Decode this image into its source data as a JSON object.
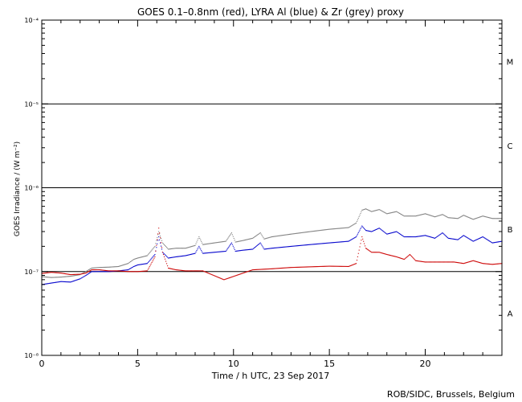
{
  "chart_data": {
    "type": "scatter",
    "title": "GOES 0.1–0.8nm (red), LYRA Al (blue) & Zr (grey) proxy",
    "xlabel": "Time / h UTC, 23 Sep 2017",
    "ylabel": "GOES Irradiance / (W m⁻²)",
    "x_range": [
      0,
      24
    ],
    "x_ticks": [
      0,
      5,
      10,
      15,
      20
    ],
    "y_scale": "log",
    "y_range": [
      1e-08,
      0.0001
    ],
    "y_ticks": [
      {
        "value": 1e-08,
        "label": "10⁻⁸"
      },
      {
        "value": 1e-07,
        "label": "10⁻⁷"
      },
      {
        "value": 1e-06,
        "label": "10⁻⁶"
      },
      {
        "value": 1e-05,
        "label": "10⁻⁵"
      },
      {
        "value": 0.0001,
        "label": "10⁻⁴"
      }
    ],
    "flare_class_lines": [
      1e-07,
      1e-06,
      1e-05
    ],
    "flare_class_labels": [
      {
        "label": "A",
        "value": 3.2e-08
      },
      {
        "label": "B",
        "value": 3.2e-07
      },
      {
        "label": "C",
        "value": 3.2e-06
      },
      {
        "label": "M",
        "value": 3.2e-05
      }
    ],
    "series": [
      {
        "name": "LYRA Zr proxy",
        "color": "#808080",
        "x": [
          0,
          0.5,
          1,
          1.5,
          2,
          2.3,
          2.6,
          3,
          3.5,
          4,
          4.5,
          4.8,
          5,
          5.5,
          5.9,
          6.1,
          6.3,
          6.6,
          7,
          7.5,
          8,
          8.2,
          8.4,
          9,
          9.6,
          9.9,
          10.1,
          10.5,
          11,
          11.4,
          11.6,
          12,
          13,
          14,
          15,
          16,
          16.4,
          16.7,
          16.9,
          17.2,
          17.6,
          18,
          18.5,
          18.9,
          19.5,
          20,
          20.5,
          20.9,
          21.2,
          21.7,
          22,
          22.5,
          23,
          23.5,
          24
        ],
        "y": [
          8.7e-08,
          8.5e-08,
          8.6e-08,
          8.8e-08,
          9.2e-08,
          1e-07,
          1.1e-07,
          1.12e-07,
          1.13e-07,
          1.15e-07,
          1.25e-07,
          1.4e-07,
          1.45e-07,
          1.55e-07,
          2e-07,
          3e-07,
          2.2e-07,
          1.85e-07,
          1.9e-07,
          1.9e-07,
          2.05e-07,
          2.6e-07,
          2.1e-07,
          2.2e-07,
          2.3e-07,
          2.9e-07,
          2.25e-07,
          2.35e-07,
          2.5e-07,
          2.9e-07,
          2.45e-07,
          2.6e-07,
          2.8e-07,
          3e-07,
          3.2e-07,
          3.35e-07,
          3.8e-07,
          5.4e-07,
          5.6e-07,
          5.2e-07,
          5.5e-07,
          4.9e-07,
          5.2e-07,
          4.6e-07,
          4.6e-07,
          4.9e-07,
          4.5e-07,
          4.8e-07,
          4.4e-07,
          4.3e-07,
          4.7e-07,
          4.2e-07,
          4.6e-07,
          4.3e-07,
          4.3e-07
        ]
      },
      {
        "name": "LYRA Al proxy",
        "color": "#0000cc",
        "x": [
          0,
          0.5,
          1,
          1.5,
          2,
          2.3,
          2.6,
          3,
          3.5,
          4,
          4.5,
          4.8,
          5,
          5.5,
          5.9,
          6.1,
          6.3,
          6.6,
          7,
          7.5,
          8,
          8.2,
          8.4,
          9,
          9.6,
          9.9,
          10.1,
          10.5,
          11,
          11.4,
          11.6,
          12,
          13,
          14,
          15,
          16,
          16.4,
          16.7,
          16.9,
          17.2,
          17.6,
          18,
          18.5,
          18.9,
          19.5,
          20,
          20.5,
          20.9,
          21.2,
          21.7,
          22,
          22.5,
          23,
          23.5,
          24
        ],
        "y": [
          7e-08,
          7.3e-08,
          7.6e-08,
          7.5e-08,
          8.2e-08,
          9e-08,
          1e-07,
          1e-07,
          1e-07,
          1.02e-07,
          1.05e-07,
          1.15e-07,
          1.2e-07,
          1.25e-07,
          1.6e-07,
          2.6e-07,
          1.7e-07,
          1.45e-07,
          1.5e-07,
          1.55e-07,
          1.65e-07,
          2e-07,
          1.65e-07,
          1.7e-07,
          1.75e-07,
          2.2e-07,
          1.75e-07,
          1.8e-07,
          1.85e-07,
          2.2e-07,
          1.85e-07,
          1.9e-07,
          2e-07,
          2.1e-07,
          2.2e-07,
          2.3e-07,
          2.6e-07,
          3.5e-07,
          3.1e-07,
          3e-07,
          3.3e-07,
          2.8e-07,
          3e-07,
          2.6e-07,
          2.6e-07,
          2.7e-07,
          2.5e-07,
          2.9e-07,
          2.5e-07,
          2.4e-07,
          2.7e-07,
          2.3e-07,
          2.6e-07,
          2.2e-07,
          2.3e-07
        ]
      },
      {
        "name": "GOES 0.1–0.8nm",
        "color": "#cc0000",
        "x": [
          0,
          0.5,
          1,
          1.5,
          2,
          2.3,
          2.6,
          3,
          3.5,
          4,
          4.5,
          5,
          5.5,
          5.9,
          6.1,
          6.3,
          6.6,
          7,
          7.5,
          8,
          8.4,
          9.5,
          9.9,
          10.5,
          11,
          12,
          13,
          14,
          15,
          16,
          16.4,
          16.7,
          16.9,
          17.2,
          17.6,
          18,
          18.5,
          18.9,
          19.2,
          19.5,
          20,
          20.5,
          21,
          21.5,
          22,
          22.5,
          23,
          23.5,
          24
        ],
        "y": [
          9.5e-08,
          9.8e-08,
          9.6e-08,
          9.2e-08,
          9.3e-08,
          9.6e-08,
          1.05e-07,
          1.05e-07,
          1.02e-07,
          1.02e-07,
          1e-07,
          1e-07,
          1.02e-07,
          1.5e-07,
          3.3e-07,
          1.7e-07,
          1.1e-07,
          1.05e-07,
          1.02e-07,
          1.02e-07,
          1.02e-07,
          8e-08,
          8.6e-08,
          9.6e-08,
          1.05e-07,
          1.08e-07,
          1.12e-07,
          1.14e-07,
          1.16e-07,
          1.15e-07,
          1.25e-07,
          2.6e-07,
          1.9e-07,
          1.7e-07,
          1.7e-07,
          1.6e-07,
          1.5e-07,
          1.4e-07,
          1.6e-07,
          1.35e-07,
          1.3e-07,
          1.3e-07,
          1.3e-07,
          1.3e-07,
          1.25e-07,
          1.35e-07,
          1.25e-07,
          1.22e-07,
          1.25e-07
        ]
      }
    ],
    "legend": "none",
    "grid": false
  },
  "footer": {
    "credit": "ROB/SIDC, Brussels, Belgium"
  }
}
